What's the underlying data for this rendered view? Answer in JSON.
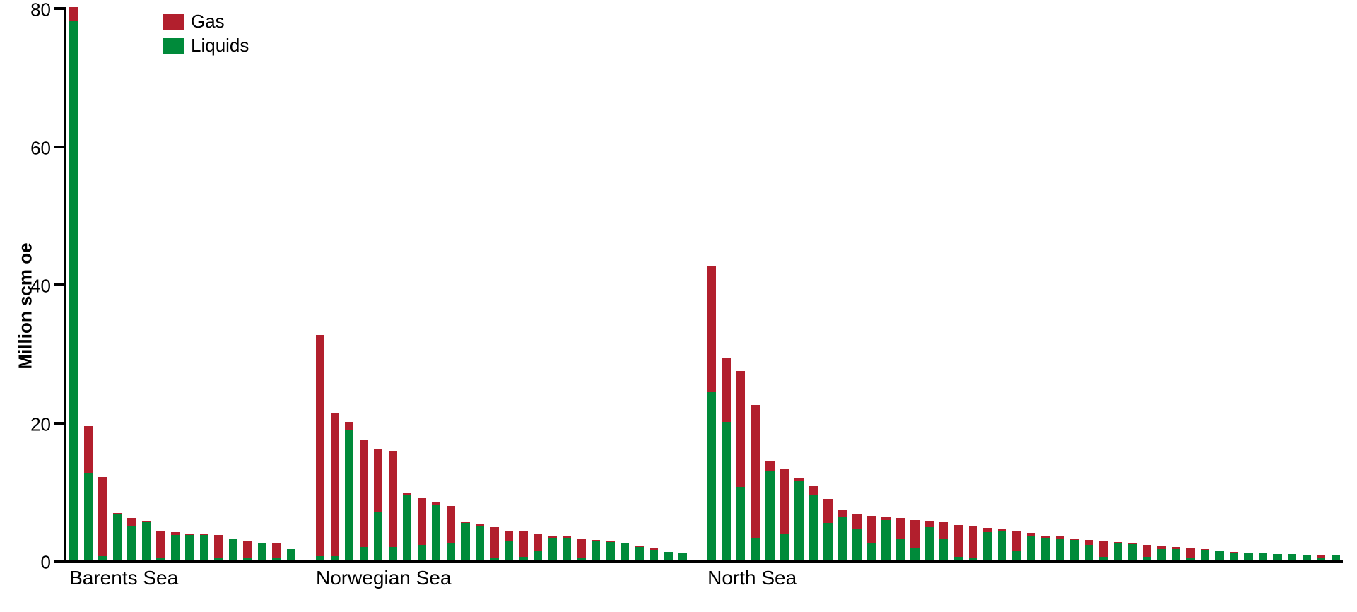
{
  "chart": {
    "type": "stacked-bar",
    "y_axis": {
      "label": "Million scm oe",
      "min": 0,
      "max": 80,
      "tick_step": 20,
      "ticks": [
        0,
        20,
        40,
        60,
        80
      ]
    },
    "legend": {
      "items": [
        {
          "label": "Gas",
          "color": "#b21f2d"
        },
        {
          "label": "Liquids",
          "color": "#008a3a"
        }
      ]
    },
    "colors": {
      "gas": "#b21f2d",
      "liquids": "#008a3a",
      "axis": "#000000",
      "background": "#ffffff"
    },
    "typography": {
      "axis_label_fontsize": 26,
      "tick_fontsize": 26,
      "group_label_fontsize": 28,
      "font_family": "Arial"
    },
    "layout": {
      "bar_width_ratio": 0.6,
      "group_gap_bars": 1
    },
    "groups": [
      {
        "label": "Barents Sea",
        "bars": [
          {
            "liquids": 78.0,
            "gas": 7.0
          },
          {
            "liquids": 12.5,
            "gas": 6.8
          },
          {
            "liquids": 0.5,
            "gas": 11.5
          },
          {
            "liquids": 6.5,
            "gas": 0.3
          },
          {
            "liquids": 4.8,
            "gas": 1.2
          },
          {
            "liquids": 5.5,
            "gas": 0.1
          },
          {
            "liquids": 0.3,
            "gas": 3.8
          },
          {
            "liquids": 3.6,
            "gas": 0.4
          },
          {
            "liquids": 3.6,
            "gas": 0.1
          },
          {
            "liquids": 3.6,
            "gas": 0.1
          },
          {
            "liquids": 0.2,
            "gas": 3.4
          },
          {
            "liquids": 3.0,
            "gas": 0.0
          },
          {
            "liquids": 0.2,
            "gas": 2.5
          },
          {
            "liquids": 2.4,
            "gas": 0.1
          },
          {
            "liquids": 0.2,
            "gas": 2.3
          },
          {
            "liquids": 1.5,
            "gas": 0.0
          }
        ]
      },
      {
        "label": "Norwegian Sea",
        "bars": [
          {
            "liquids": 0.5,
            "gas": 32.0
          },
          {
            "liquids": 0.5,
            "gas": 20.8
          },
          {
            "liquids": 18.8,
            "gas": 1.2
          },
          {
            "liquids": 1.8,
            "gas": 15.5
          },
          {
            "liquids": 7.0,
            "gas": 9.0
          },
          {
            "liquids": 1.8,
            "gas": 14.0
          },
          {
            "liquids": 9.3,
            "gas": 0.4
          },
          {
            "liquids": 2.2,
            "gas": 6.7
          },
          {
            "liquids": 8.0,
            "gas": 0.4
          },
          {
            "liquids": 2.4,
            "gas": 5.4
          },
          {
            "liquids": 5.3,
            "gas": 0.2
          },
          {
            "liquids": 4.8,
            "gas": 0.4
          },
          {
            "liquids": 0.2,
            "gas": 4.5
          },
          {
            "liquids": 2.8,
            "gas": 1.4
          },
          {
            "liquids": 0.4,
            "gas": 3.7
          },
          {
            "liquids": 1.2,
            "gas": 2.6
          },
          {
            "liquids": 3.2,
            "gas": 0.3
          },
          {
            "liquids": 3.2,
            "gas": 0.2
          },
          {
            "liquids": 0.3,
            "gas": 2.8
          },
          {
            "liquids": 2.7,
            "gas": 0.2
          },
          {
            "liquids": 2.6,
            "gas": 0.1
          },
          {
            "liquids": 2.4,
            "gas": 0.1
          },
          {
            "liquids": 1.8,
            "gas": 0.1
          },
          {
            "liquids": 1.4,
            "gas": 0.2
          },
          {
            "liquids": 1.1,
            "gas": 0.0
          },
          {
            "liquids": 1.0,
            "gas": 0.0
          }
        ]
      },
      {
        "label": "North Sea",
        "bars": [
          {
            "liquids": 24.3,
            "gas": 18.2
          },
          {
            "liquids": 20.0,
            "gas": 9.3
          },
          {
            "liquids": 10.5,
            "gas": 16.8
          },
          {
            "liquids": 3.2,
            "gas": 19.2
          },
          {
            "liquids": 12.8,
            "gas": 1.4
          },
          {
            "liquids": 3.8,
            "gas": 9.4
          },
          {
            "liquids": 11.5,
            "gas": 0.3
          },
          {
            "liquids": 9.3,
            "gas": 1.4
          },
          {
            "liquids": 5.3,
            "gas": 3.5
          },
          {
            "liquids": 6.2,
            "gas": 1.0
          },
          {
            "liquids": 4.4,
            "gas": 2.3
          },
          {
            "liquids": 2.4,
            "gas": 3.9
          },
          {
            "liquids": 5.7,
            "gas": 0.4
          },
          {
            "liquids": 3.0,
            "gas": 3.0
          },
          {
            "liquids": 1.7,
            "gas": 4.0
          },
          {
            "liquids": 4.7,
            "gas": 0.9
          },
          {
            "liquids": 3.1,
            "gas": 2.4
          },
          {
            "liquids": 0.4,
            "gas": 4.6
          },
          {
            "liquids": 0.3,
            "gas": 4.5
          },
          {
            "liquids": 4.0,
            "gas": 0.6
          },
          {
            "liquids": 4.2,
            "gas": 0.2
          },
          {
            "liquids": 1.2,
            "gas": 2.9
          },
          {
            "liquids": 3.5,
            "gas": 0.4
          },
          {
            "liquids": 3.2,
            "gas": 0.3
          },
          {
            "liquids": 3.1,
            "gas": 0.3
          },
          {
            "liquids": 2.9,
            "gas": 0.2
          },
          {
            "liquids": 2.2,
            "gas": 0.7
          },
          {
            "liquids": 0.4,
            "gas": 2.4
          },
          {
            "liquids": 2.4,
            "gas": 0.2
          },
          {
            "liquids": 2.3,
            "gas": 0.1
          },
          {
            "liquids": 0.4,
            "gas": 1.8
          },
          {
            "liquids": 1.5,
            "gas": 0.4
          },
          {
            "liquids": 1.5,
            "gas": 0.3
          },
          {
            "liquids": 0.2,
            "gas": 1.4
          },
          {
            "liquids": 1.4,
            "gas": 0.1
          },
          {
            "liquids": 1.2,
            "gas": 0.1
          },
          {
            "liquids": 1.0,
            "gas": 0.1
          },
          {
            "liquids": 1.0,
            "gas": 0.0
          },
          {
            "liquids": 0.9,
            "gas": 0.0
          },
          {
            "liquids": 0.8,
            "gas": 0.0
          },
          {
            "liquids": 0.8,
            "gas": 0.0
          },
          {
            "liquids": 0.7,
            "gas": 0.0
          },
          {
            "liquids": 0.2,
            "gas": 0.5
          },
          {
            "liquids": 0.6,
            "gas": 0.0
          }
        ]
      }
    ]
  }
}
